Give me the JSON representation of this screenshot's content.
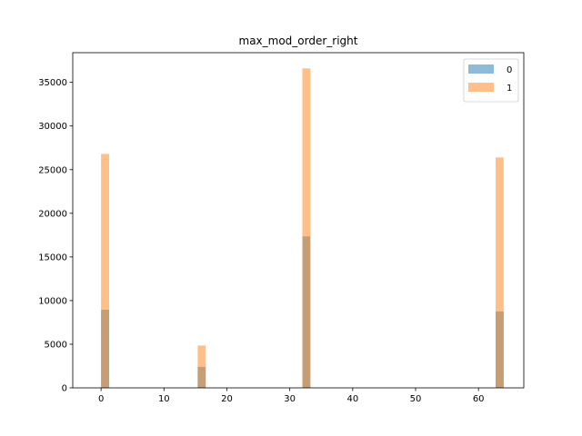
{
  "chart_data": {
    "type": "bar",
    "title": "max_mod_order_right",
    "xlabel": "",
    "ylabel": "",
    "xlim": [
      -4.5,
      67.2
    ],
    "ylim": [
      0,
      38400
    ],
    "xticks": [
      0,
      10,
      20,
      30,
      40,
      50,
      60
    ],
    "yticks": [
      0,
      5000,
      10000,
      15000,
      20000,
      25000,
      30000,
      35000
    ],
    "bin_width": 1.28,
    "series": [
      {
        "name": "0",
        "color": "#1f77b4",
        "alpha": 0.5,
        "bins": [
          {
            "x0": 0.0,
            "value": 8950
          },
          {
            "x0": 15.36,
            "value": 2400
          },
          {
            "x0": 32.0,
            "value": 17350
          },
          {
            "x0": 62.72,
            "value": 8750
          }
        ]
      },
      {
        "name": "1",
        "color": "#ff7f0e",
        "alpha": 0.5,
        "bins": [
          {
            "x0": 0.0,
            "value": 26800
          },
          {
            "x0": 15.36,
            "value": 4850
          },
          {
            "x0": 32.0,
            "value": 36600
          },
          {
            "x0": 62.72,
            "value": 26400
          }
        ]
      }
    ],
    "legend": {
      "position": "top-right",
      "entries": [
        "0",
        "1"
      ]
    },
    "grid": false
  }
}
